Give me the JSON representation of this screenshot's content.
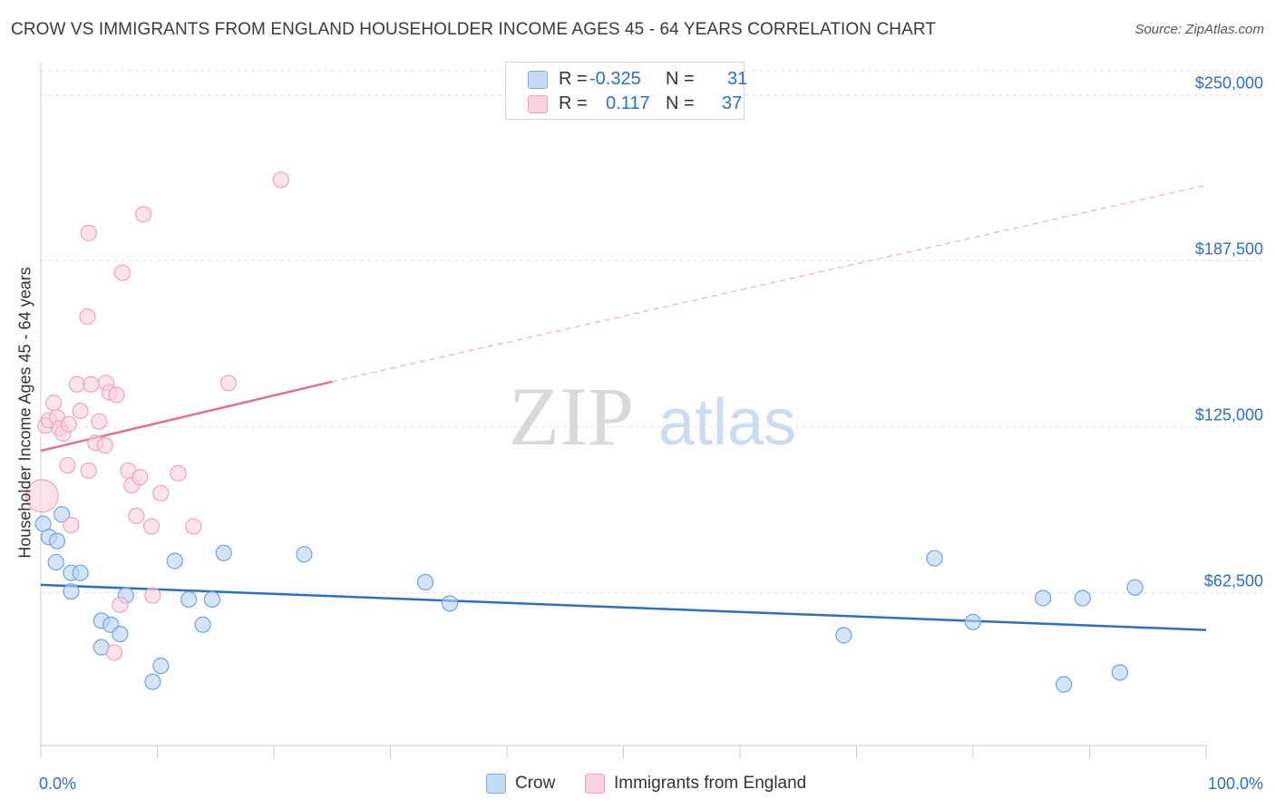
{
  "title": "CROW VS IMMIGRANTS FROM ENGLAND HOUSEHOLDER INCOME AGES 45 - 64 YEARS CORRELATION CHART",
  "source": "Source: ZipAtlas.com",
  "watermark": {
    "zip": "ZIP",
    "atlas": "atlas"
  },
  "legend": {
    "r_label": "R =",
    "n_label": "N =",
    "rows": [
      {
        "series": "Crow",
        "r": "-0.325",
        "n": "31"
      },
      {
        "series": "Immigrants from England",
        "r": "0.117",
        "n": "37"
      }
    ]
  },
  "chart_data": {
    "type": "scatter",
    "title": "CROW VS IMMIGRANTS FROM ENGLAND HOUSEHOLDER INCOME AGES 45 - 64 YEARS CORRELATION CHART",
    "xlabel": "",
    "ylabel": "Householder Income Ages 45 - 64 years",
    "xlim": [
      0,
      100
    ],
    "ylim": [
      5000,
      262500
    ],
    "x_tick_labels": [
      "0.0%",
      "100.0%"
    ],
    "y_ticks": [
      {
        "value": 62500,
        "label": "$62,500"
      },
      {
        "value": 125000,
        "label": "$125,000"
      },
      {
        "value": 187500,
        "label": "$187,500"
      },
      {
        "value": 250000,
        "label": "$250,000"
      }
    ],
    "grid": true,
    "legend_position": "top-center",
    "series": [
      {
        "name": "Crow",
        "color": "#6fa4e8",
        "fill": "#b8d3f5",
        "trend": {
          "x": [
            0,
            100
          ],
          "y": [
            65500,
            48500
          ],
          "color": "#2f6fc3",
          "dashed_from": null
        },
        "points": [
          {
            "x": 0.2,
            "y": 88500,
            "size": 1
          },
          {
            "x": 0.7,
            "y": 83500,
            "size": 1
          },
          {
            "x": 1.8,
            "y": 92000,
            "size": 1
          },
          {
            "x": 1.4,
            "y": 82000,
            "size": 1
          },
          {
            "x": 1.3,
            "y": 74000,
            "size": 1
          },
          {
            "x": 2.6,
            "y": 70000,
            "size": 1
          },
          {
            "x": 3.4,
            "y": 70000,
            "size": 1
          },
          {
            "x": 2.6,
            "y": 63000,
            "size": 1
          },
          {
            "x": 5.2,
            "y": 52000,
            "size": 1
          },
          {
            "x": 6.0,
            "y": 50500,
            "size": 1
          },
          {
            "x": 6.8,
            "y": 47000,
            "size": 1
          },
          {
            "x": 5.2,
            "y": 42000,
            "size": 1
          },
          {
            "x": 7.3,
            "y": 61500,
            "size": 1
          },
          {
            "x": 10.3,
            "y": 35000,
            "size": 1
          },
          {
            "x": 9.6,
            "y": 29000,
            "size": 1
          },
          {
            "x": 11.5,
            "y": 74500,
            "size": 1
          },
          {
            "x": 12.7,
            "y": 60000,
            "size": 1
          },
          {
            "x": 14.7,
            "y": 60000,
            "size": 1
          },
          {
            "x": 13.9,
            "y": 50500,
            "size": 1
          },
          {
            "x": 15.7,
            "y": 77500,
            "size": 1
          },
          {
            "x": 22.6,
            "y": 77000,
            "size": 1
          },
          {
            "x": 33.0,
            "y": 66500,
            "size": 1
          },
          {
            "x": 35.1,
            "y": 58500,
            "size": 1
          },
          {
            "x": 68.9,
            "y": 46500,
            "size": 1
          },
          {
            "x": 76.7,
            "y": 75500,
            "size": 1
          },
          {
            "x": 80.0,
            "y": 51500,
            "size": 1
          },
          {
            "x": 86.0,
            "y": 60500,
            "size": 1
          },
          {
            "x": 89.4,
            "y": 60500,
            "size": 1
          },
          {
            "x": 87.8,
            "y": 28000,
            "size": 1
          },
          {
            "x": 92.6,
            "y": 32500,
            "size": 1
          },
          {
            "x": 93.9,
            "y": 64500,
            "size": 1
          }
        ]
      },
      {
        "name": "Immigrants from England",
        "color": "#f2a3bd",
        "fill": "#fbd0de",
        "trend": {
          "x": [
            0,
            25
          ],
          "y": [
            116000,
            142000
          ],
          "color": "#e07196",
          "dashed_to_x": 100,
          "dashed_to_y": 216000
        },
        "points": [
          {
            "x": 0.1,
            "y": 99000,
            "size": 2.1
          },
          {
            "x": 0.4,
            "y": 125500,
            "size": 1
          },
          {
            "x": 0.7,
            "y": 127500,
            "size": 1
          },
          {
            "x": 1.1,
            "y": 134000,
            "size": 1
          },
          {
            "x": 1.4,
            "y": 128500,
            "size": 1
          },
          {
            "x": 1.6,
            "y": 124500,
            "size": 1
          },
          {
            "x": 1.9,
            "y": 122500,
            "size": 1
          },
          {
            "x": 2.4,
            "y": 126000,
            "size": 1
          },
          {
            "x": 3.1,
            "y": 141000,
            "size": 1
          },
          {
            "x": 3.4,
            "y": 131000,
            "size": 1
          },
          {
            "x": 4.3,
            "y": 141000,
            "size": 1
          },
          {
            "x": 5.0,
            "y": 127000,
            "size": 1
          },
          {
            "x": 4.7,
            "y": 119000,
            "size": 1
          },
          {
            "x": 5.5,
            "y": 118000,
            "size": 1
          },
          {
            "x": 5.6,
            "y": 141500,
            "size": 1
          },
          {
            "x": 5.9,
            "y": 138000,
            "size": 1
          },
          {
            "x": 6.5,
            "y": 137000,
            "size": 1
          },
          {
            "x": 2.3,
            "y": 110500,
            "size": 1
          },
          {
            "x": 4.1,
            "y": 108500,
            "size": 1
          },
          {
            "x": 7.5,
            "y": 108500,
            "size": 1
          },
          {
            "x": 7.8,
            "y": 103000,
            "size": 1
          },
          {
            "x": 8.5,
            "y": 106000,
            "size": 1
          },
          {
            "x": 10.3,
            "y": 100000,
            "size": 1
          },
          {
            "x": 11.8,
            "y": 107500,
            "size": 1
          },
          {
            "x": 2.6,
            "y": 88000,
            "size": 1
          },
          {
            "x": 8.2,
            "y": 91500,
            "size": 1
          },
          {
            "x": 9.5,
            "y": 87500,
            "size": 1
          },
          {
            "x": 13.1,
            "y": 87500,
            "size": 1
          },
          {
            "x": 6.8,
            "y": 58000,
            "size": 1
          },
          {
            "x": 9.6,
            "y": 61500,
            "size": 1
          },
          {
            "x": 6.3,
            "y": 40000,
            "size": 1
          },
          {
            "x": 4.0,
            "y": 166500,
            "size": 1
          },
          {
            "x": 4.1,
            "y": 198000,
            "size": 1
          },
          {
            "x": 7.0,
            "y": 183000,
            "size": 1
          },
          {
            "x": 8.8,
            "y": 205000,
            "size": 1
          },
          {
            "x": 16.1,
            "y": 141500,
            "size": 1
          },
          {
            "x": 20.6,
            "y": 218000,
            "size": 1
          }
        ]
      }
    ]
  }
}
